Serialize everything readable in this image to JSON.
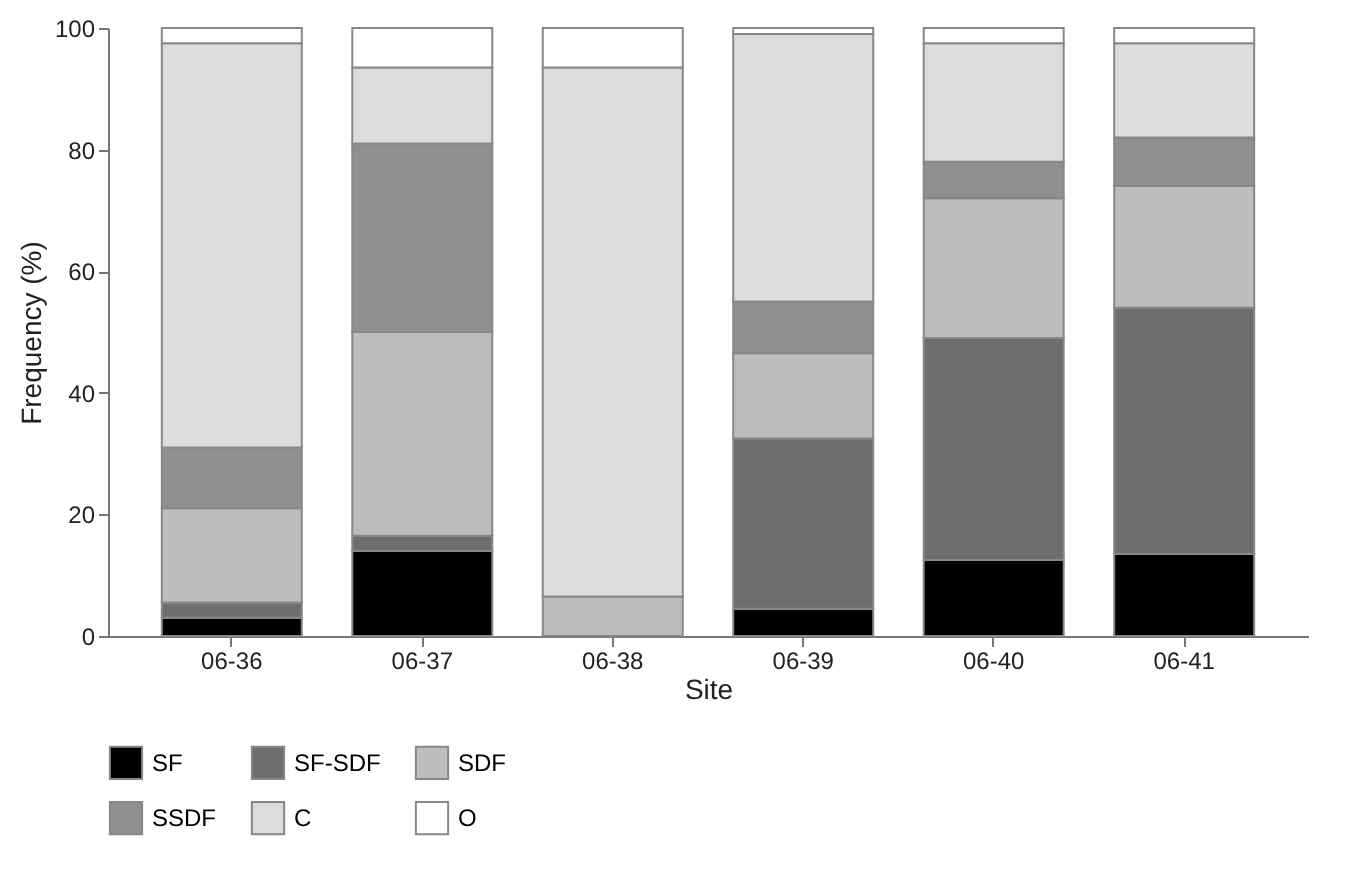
{
  "chart_data": {
    "type": "bar",
    "stacked": true,
    "xlabel": "Site",
    "ylabel": "Frequency (%)",
    "categories": [
      "06-36",
      "06-37",
      "06-38",
      "06-39",
      "06-40",
      "06-41"
    ],
    "ylim": [
      0,
      100
    ],
    "yticks": [
      0,
      20,
      40,
      60,
      80,
      100
    ],
    "grid": false,
    "legend": "bottom",
    "series": [
      {
        "name": "SF",
        "color": "#000000",
        "values": [
          3,
          14,
          0,
          4.5,
          12.5,
          13.5
        ]
      },
      {
        "name": "SF-SDF",
        "color": "#6e6e6e",
        "values": [
          2.5,
          2.5,
          0,
          28,
          36.5,
          40.5
        ]
      },
      {
        "name": "SDF",
        "color": "#bdbdbd",
        "values": [
          15.5,
          33.5,
          6.5,
          14,
          23,
          20
        ]
      },
      {
        "name": "SSDF",
        "color": "#8f8f8f",
        "values": [
          10,
          31,
          0,
          8.5,
          6,
          8
        ]
      },
      {
        "name": "C",
        "color": "#dcdcdc",
        "values": [
          66.5,
          12.5,
          87,
          44,
          19.5,
          15.5
        ]
      },
      {
        "name": "O",
        "color": "#ffffff",
        "values": [
          2.5,
          6.5,
          6.5,
          1,
          2.5,
          2.5
        ]
      }
    ]
  }
}
